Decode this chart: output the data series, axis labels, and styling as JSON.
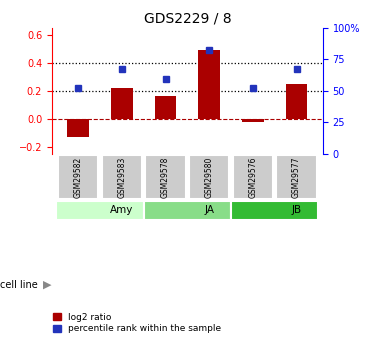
{
  "title": "GDS2229 / 8",
  "samples": [
    "GSM29582",
    "GSM29583",
    "GSM29578",
    "GSM29580",
    "GSM29576",
    "GSM29577"
  ],
  "log2_ratio": [
    -0.13,
    0.22,
    0.16,
    0.49,
    -0.02,
    0.25
  ],
  "percentile_rank": [
    52,
    67,
    59,
    82,
    52,
    67
  ],
  "cell_lines": [
    {
      "label": "Amy",
      "start": 0,
      "end": 2,
      "color": "#ccffcc"
    },
    {
      "label": "JA",
      "start": 2,
      "end": 4,
      "color": "#88dd88"
    },
    {
      "label": "JB",
      "start": 4,
      "end": 6,
      "color": "#33bb33"
    }
  ],
  "bar_color": "#aa0000",
  "dot_color": "#2233bb",
  "ylim_left": [
    -0.25,
    0.65
  ],
  "yticks_left": [
    -0.2,
    0.0,
    0.2,
    0.4,
    0.6
  ],
  "yticks_right_pct": [
    0,
    25,
    50,
    75,
    100
  ],
  "hline_y": [
    0.2,
    0.4
  ],
  "background_color": "#ffffff",
  "sample_box_color": "#cccccc",
  "bar_width": 0.5
}
